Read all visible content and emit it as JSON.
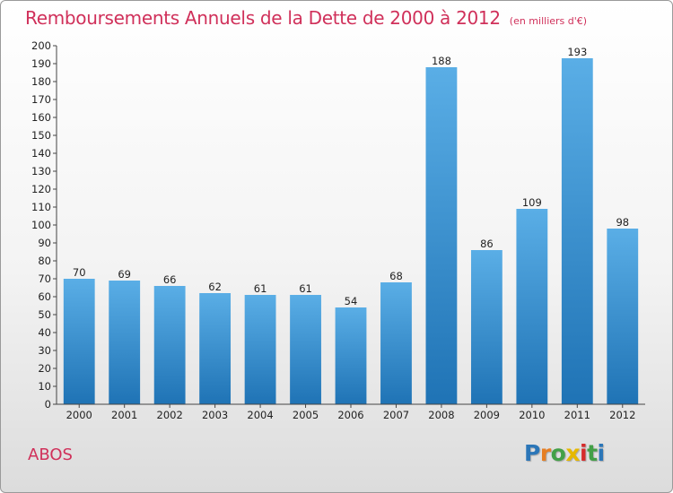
{
  "header": {
    "title": "Remboursements Annuels de la Dette de 2000 à 2012",
    "subtitle": "(en milliers d'€)"
  },
  "footer": {
    "commune": "ABOS"
  },
  "logo": {
    "letters": [
      "P",
      "r",
      "o",
      "x",
      "i",
      "t",
      "i"
    ],
    "colors": [
      "#2b76b8",
      "#e67e22",
      "#43a047",
      "#e6b800",
      "#d62c2c",
      "#43a047",
      "#2b76b8"
    ]
  },
  "colors": {
    "bar_top": "#5aaee6",
    "bar_bottom": "#1f73b5",
    "text_accent": "#d0305a"
  },
  "chart_data": {
    "type": "bar",
    "categories": [
      "2000",
      "2001",
      "2002",
      "2003",
      "2004",
      "2005",
      "2006",
      "2007",
      "2008",
      "2009",
      "2010",
      "2011",
      "2012"
    ],
    "values": [
      70,
      69,
      66,
      62,
      61,
      61,
      54,
      68,
      188,
      86,
      109,
      193,
      98
    ],
    "data_labels": [
      "70",
      "69",
      "66",
      "62",
      "61",
      "61",
      "54",
      "68",
      "188",
      "86",
      "109",
      "193",
      "98"
    ],
    "ylim": [
      0,
      200
    ],
    "ytick_step": 10,
    "yticks": [
      "0",
      "10",
      "20",
      "30",
      "40",
      "50",
      "60",
      "70",
      "80",
      "90",
      "100",
      "110",
      "120",
      "130",
      "140",
      "150",
      "160",
      "170",
      "180",
      "190",
      "200"
    ],
    "grid": false,
    "legend": "none"
  }
}
